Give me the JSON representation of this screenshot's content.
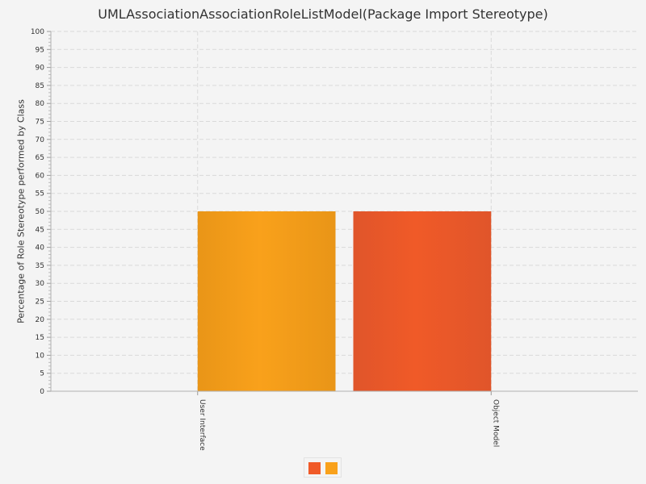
{
  "chart_data": {
    "type": "bar",
    "title": "UMLAssociationAssociationRoleListModel(Package Import Stereotype)",
    "xlabel": "",
    "ylabel": "Percentage of Role Stereotype performed by Class",
    "ylim": [
      0,
      100
    ],
    "ytick_step": 5,
    "categories": [
      "User Interface",
      "Object Model"
    ],
    "series": [
      {
        "values": [
          0,
          50
        ],
        "color": "#f05a28"
      },
      {
        "values": [
          50,
          0
        ],
        "color": "#f9a11b"
      }
    ],
    "grid": true,
    "legend_position": "bottom-center"
  }
}
